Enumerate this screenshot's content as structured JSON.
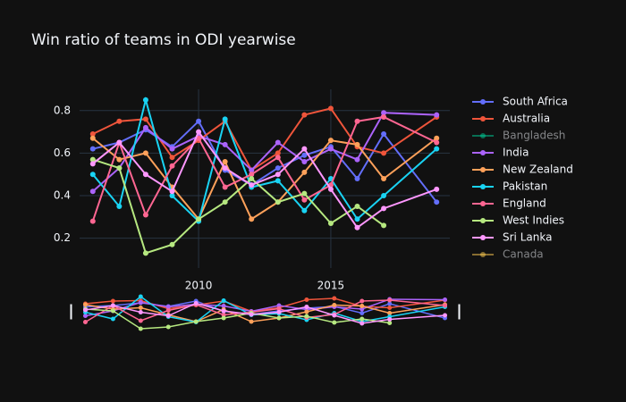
{
  "chart_data": {
    "type": "line",
    "title": "Win ratio of teams in ODI yearwise",
    "x": [
      2006,
      2007,
      2008,
      2009,
      2010,
      2011,
      2012,
      2013,
      2014,
      2015,
      2016,
      2017,
      2019
    ],
    "series": [
      {
        "name": "South Africa",
        "color": "#636efa",
        "visible": true,
        "values": [
          0.62,
          0.65,
          0.71,
          0.63,
          0.75,
          0.52,
          0.45,
          0.53,
          0.59,
          0.63,
          0.48,
          0.69,
          0.37
        ]
      },
      {
        "name": "Australia",
        "color": "#ef553b",
        "visible": true,
        "values": [
          0.69,
          0.75,
          0.76,
          0.58,
          0.66,
          0.75,
          0.52,
          0.6,
          0.78,
          0.81,
          0.63,
          0.6,
          0.77
        ]
      },
      {
        "name": "Bangladesh",
        "color": "#00cc96",
        "visible": false,
        "values": [
          null,
          null,
          null,
          null,
          null,
          null,
          null,
          null,
          null,
          null,
          null,
          null,
          null
        ]
      },
      {
        "name": "India",
        "color": "#ab63fa",
        "visible": true,
        "values": [
          0.42,
          0.53,
          0.72,
          0.62,
          0.68,
          0.64,
          0.52,
          0.65,
          0.56,
          0.62,
          0.57,
          0.79,
          0.78
        ]
      },
      {
        "name": "New Zealand",
        "color": "#ffa15a",
        "visible": true,
        "values": [
          0.67,
          0.57,
          0.6,
          0.44,
          0.29,
          0.56,
          0.29,
          0.37,
          0.51,
          0.66,
          0.64,
          0.48,
          0.67
        ]
      },
      {
        "name": "Pakistan",
        "color": "#19d3f3",
        "visible": true,
        "values": [
          0.5,
          0.35,
          0.85,
          0.4,
          0.28,
          0.76,
          0.44,
          0.47,
          0.33,
          0.48,
          0.29,
          0.4,
          0.62
        ]
      },
      {
        "name": "England",
        "color": "#ff6692",
        "visible": true,
        "values": [
          0.28,
          0.65,
          0.31,
          0.54,
          0.67,
          0.44,
          0.5,
          0.58,
          0.38,
          0.45,
          0.75,
          0.77,
          0.65
        ]
      },
      {
        "name": "West Indies",
        "color": "#b6e880",
        "visible": true,
        "values": [
          0.57,
          0.53,
          0.13,
          0.17,
          0.29,
          0.37,
          0.48,
          0.37,
          0.41,
          0.27,
          0.35,
          0.26,
          null
        ]
      },
      {
        "name": "Sri Lanka",
        "color": "#ff97ff",
        "visible": true,
        "values": [
          0.55,
          0.65,
          0.5,
          0.42,
          0.7,
          0.53,
          0.45,
          0.5,
          0.62,
          0.43,
          0.25,
          0.34,
          0.43
        ]
      },
      {
        "name": "Canada",
        "color": "#fecb52",
        "visible": false,
        "values": [
          null,
          null,
          null,
          null,
          null,
          null,
          null,
          null,
          null,
          null,
          null,
          null,
          null
        ]
      }
    ],
    "xlim": [
      2005.5,
      2019.5
    ],
    "ylim": [
      0.06,
      0.9
    ],
    "xticks": [
      2010,
      2015
    ],
    "yticks": [
      0.2,
      0.4,
      0.6,
      0.8
    ],
    "grid": true,
    "legend": "right",
    "rangeslider": true
  }
}
